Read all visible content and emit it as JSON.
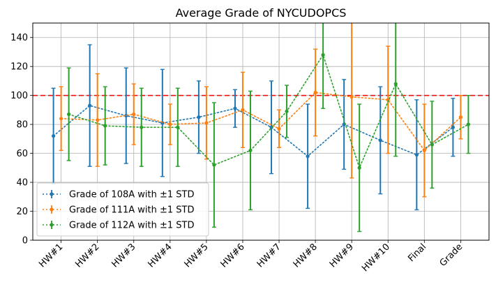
{
  "chart_data": {
    "type": "line",
    "title": "Average Grade of NYCUDOPCS",
    "xlabel": "",
    "ylabel": "",
    "ylim": [
      0,
      150
    ],
    "yticks": [
      0,
      20,
      40,
      60,
      80,
      100,
      120,
      140
    ],
    "grid": true,
    "legend_position": "lower-left",
    "categories": [
      "HW#1",
      "HW#2",
      "HW#3",
      "HW#4",
      "HW#5",
      "HW#6",
      "HW#7",
      "HW#8",
      "HW#9",
      "HW#10",
      "Final",
      "Grade"
    ],
    "reference_line": {
      "y": 100,
      "color": "#ee1111",
      "style": "dashed"
    },
    "series": [
      {
        "name": "Grade of 108A with ±1 STD",
        "color": "#1f77b4",
        "values": [
          72,
          93,
          86,
          81,
          85,
          91,
          78,
          58,
          80,
          69,
          59,
          78
        ],
        "std": [
          33,
          42,
          33,
          37,
          25,
          13,
          32,
          36,
          31,
          37,
          38,
          20
        ]
      },
      {
        "name": "Grade of 111A with ±1 STD",
        "color": "#ff7f0e",
        "values": [
          84,
          83,
          87,
          80,
          81,
          90,
          77,
          102,
          99,
          97,
          62,
          85
        ],
        "std": [
          22,
          32,
          21,
          14,
          25,
          26,
          13,
          30,
          56,
          37,
          32,
          15
        ]
      },
      {
        "name": "Grade of 112A with ±1 STD",
        "color": "#2ca02c",
        "values": [
          87,
          79,
          78,
          78,
          52,
          62,
          89,
          128,
          50,
          108,
          66,
          80
        ],
        "std": [
          32,
          27,
          27,
          27,
          43,
          41,
          18,
          37,
          44,
          50,
          30,
          20
        ]
      }
    ]
  }
}
